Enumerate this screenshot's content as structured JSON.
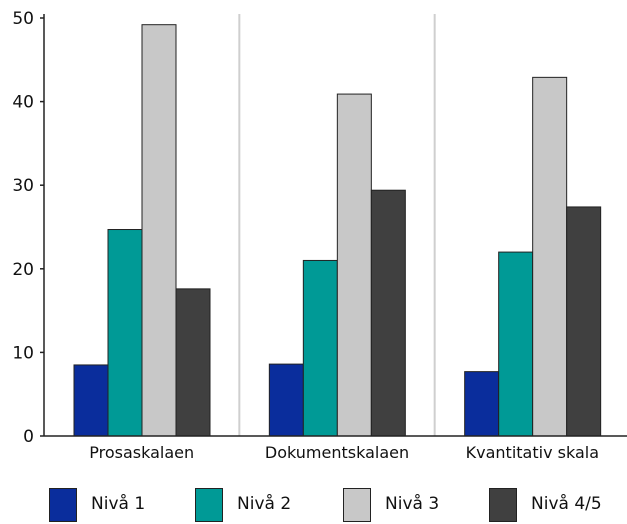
{
  "chart_data": {
    "type": "bar",
    "categories": [
      "Prosaskalaen",
      "Dokumentskalaen",
      "Kvantitativ skala"
    ],
    "series": [
      {
        "name": "Nivå 1",
        "values": [
          8.5,
          8.6,
          7.7
        ],
        "color": "#0a2d9c"
      },
      {
        "name": "Nivå 2",
        "values": [
          24.7,
          21.0,
          22.0
        ],
        "color": "#009a96"
      },
      {
        "name": "Nivå 3",
        "values": [
          49.2,
          40.9,
          42.9
        ],
        "color": "#c8c8c8"
      },
      {
        "name": "Nivå 4/5",
        "values": [
          17.6,
          29.4,
          27.4
        ],
        "color": "#404040"
      }
    ],
    "ylim": [
      0,
      50
    ],
    "yticks": [
      0,
      10,
      20,
      30,
      40,
      50
    ],
    "grid": "vertical separators between categories",
    "legend": "bottom",
    "title": "",
    "xlabel": "",
    "ylabel": ""
  }
}
